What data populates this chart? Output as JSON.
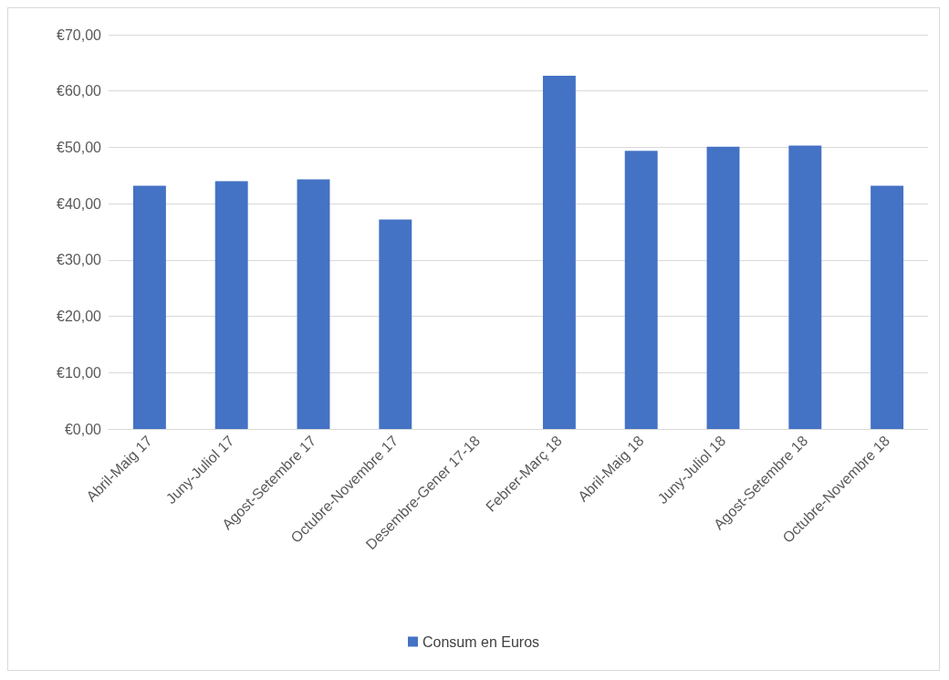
{
  "chart_data": {
    "type": "bar",
    "categories": [
      "Abril-Maig 17",
      "Juny-Juliol 17",
      "Agost-Setembre 17",
      "Octubre-Novembre 17",
      "Desembre-Gener 17-18",
      "Febrer-Març 18",
      "Abril-Maig 18",
      "Juny-Juliol 18",
      "Agost-Setembre 18",
      "Octubre-Novembre 18"
    ],
    "series": [
      {
        "name": "Consum en Euros",
        "color": "#4472c4",
        "values": [
          43.2,
          44.0,
          44.3,
          37.2,
          null,
          62.7,
          49.4,
          50.1,
          50.3,
          43.2
        ]
      }
    ],
    "ylim": [
      0,
      70
    ],
    "yticks": [
      {
        "value": 0,
        "label": "€0,00"
      },
      {
        "value": 10,
        "label": "€10,00"
      },
      {
        "value": 20,
        "label": "€20,00"
      },
      {
        "value": 30,
        "label": "€30,00"
      },
      {
        "value": 40,
        "label": "€40,00"
      },
      {
        "value": 50,
        "label": "€50,00"
      },
      {
        "value": 60,
        "label": "€60,00"
      },
      {
        "value": 70,
        "label": "€70,00"
      }
    ],
    "grid": "y",
    "legend": "bottom"
  }
}
